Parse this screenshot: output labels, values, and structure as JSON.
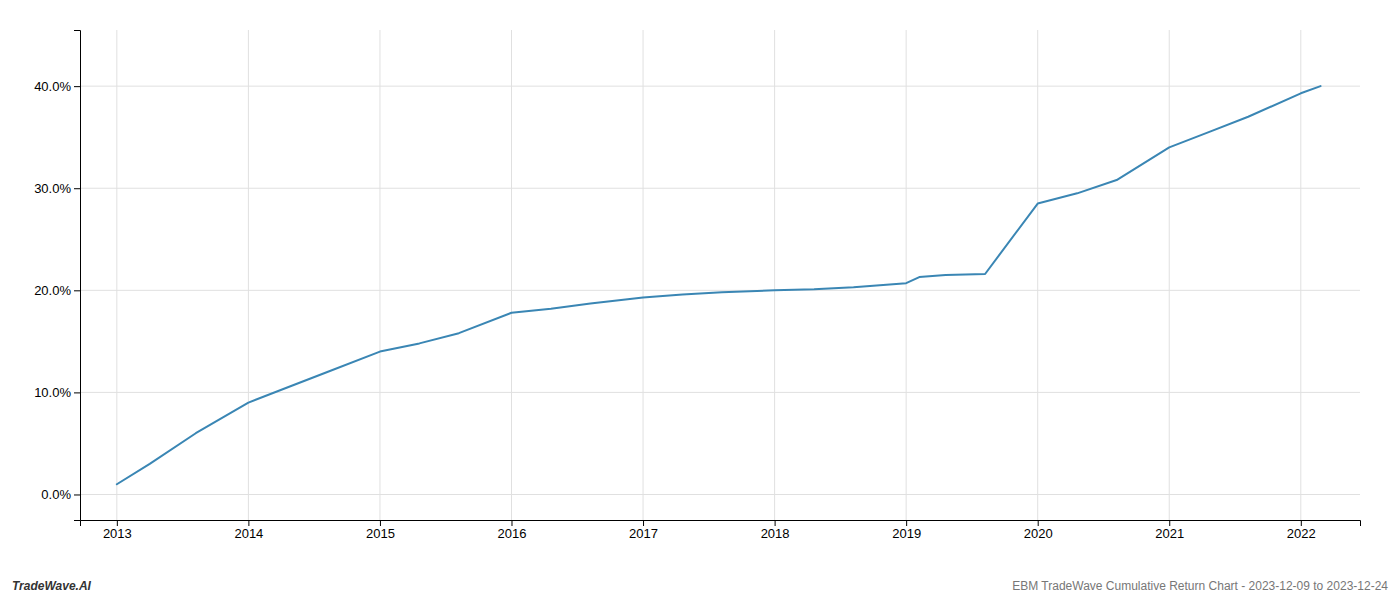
{
  "chart_data": {
    "type": "line",
    "x": [
      2013.0,
      2013.25,
      2013.6,
      2014.0,
      2014.3,
      2014.6,
      2015.0,
      2015.3,
      2015.6,
      2016.0,
      2016.3,
      2016.6,
      2017.0,
      2017.3,
      2017.6,
      2018.0,
      2018.3,
      2018.6,
      2019.0,
      2019.1,
      2019.3,
      2019.6,
      2020.0,
      2020.3,
      2020.6,
      2021.0,
      2021.3,
      2021.6,
      2022.0,
      2022.15
    ],
    "values": [
      0.01,
      0.03,
      0.06,
      0.09,
      0.105,
      0.12,
      0.14,
      0.148,
      0.158,
      0.178,
      0.182,
      0.187,
      0.193,
      0.196,
      0.198,
      0.2,
      0.201,
      0.203,
      0.207,
      0.213,
      0.215,
      0.216,
      0.285,
      0.295,
      0.308,
      0.34,
      0.355,
      0.37,
      0.393,
      0.4
    ],
    "color": "#3a86b4",
    "xlim": [
      2012.72,
      2022.45
    ],
    "ylim": [
      -0.025,
      0.455
    ],
    "xticks": [
      2013,
      2014,
      2015,
      2016,
      2017,
      2018,
      2019,
      2020,
      2021,
      2022
    ],
    "yticks": [
      {
        "value": 0.0,
        "label": "0.0%"
      },
      {
        "value": 0.1,
        "label": "10.0%"
      },
      {
        "value": 0.2,
        "label": "20.0%"
      },
      {
        "value": 0.3,
        "label": "30.0%"
      },
      {
        "value": 0.4,
        "label": "40.0%"
      }
    ],
    "grid": true,
    "annotations": [
      "TradeWave.AI",
      "EBM TradeWave Cumulative Return Chart - 2023-12-09 to 2023-12-24"
    ]
  }
}
